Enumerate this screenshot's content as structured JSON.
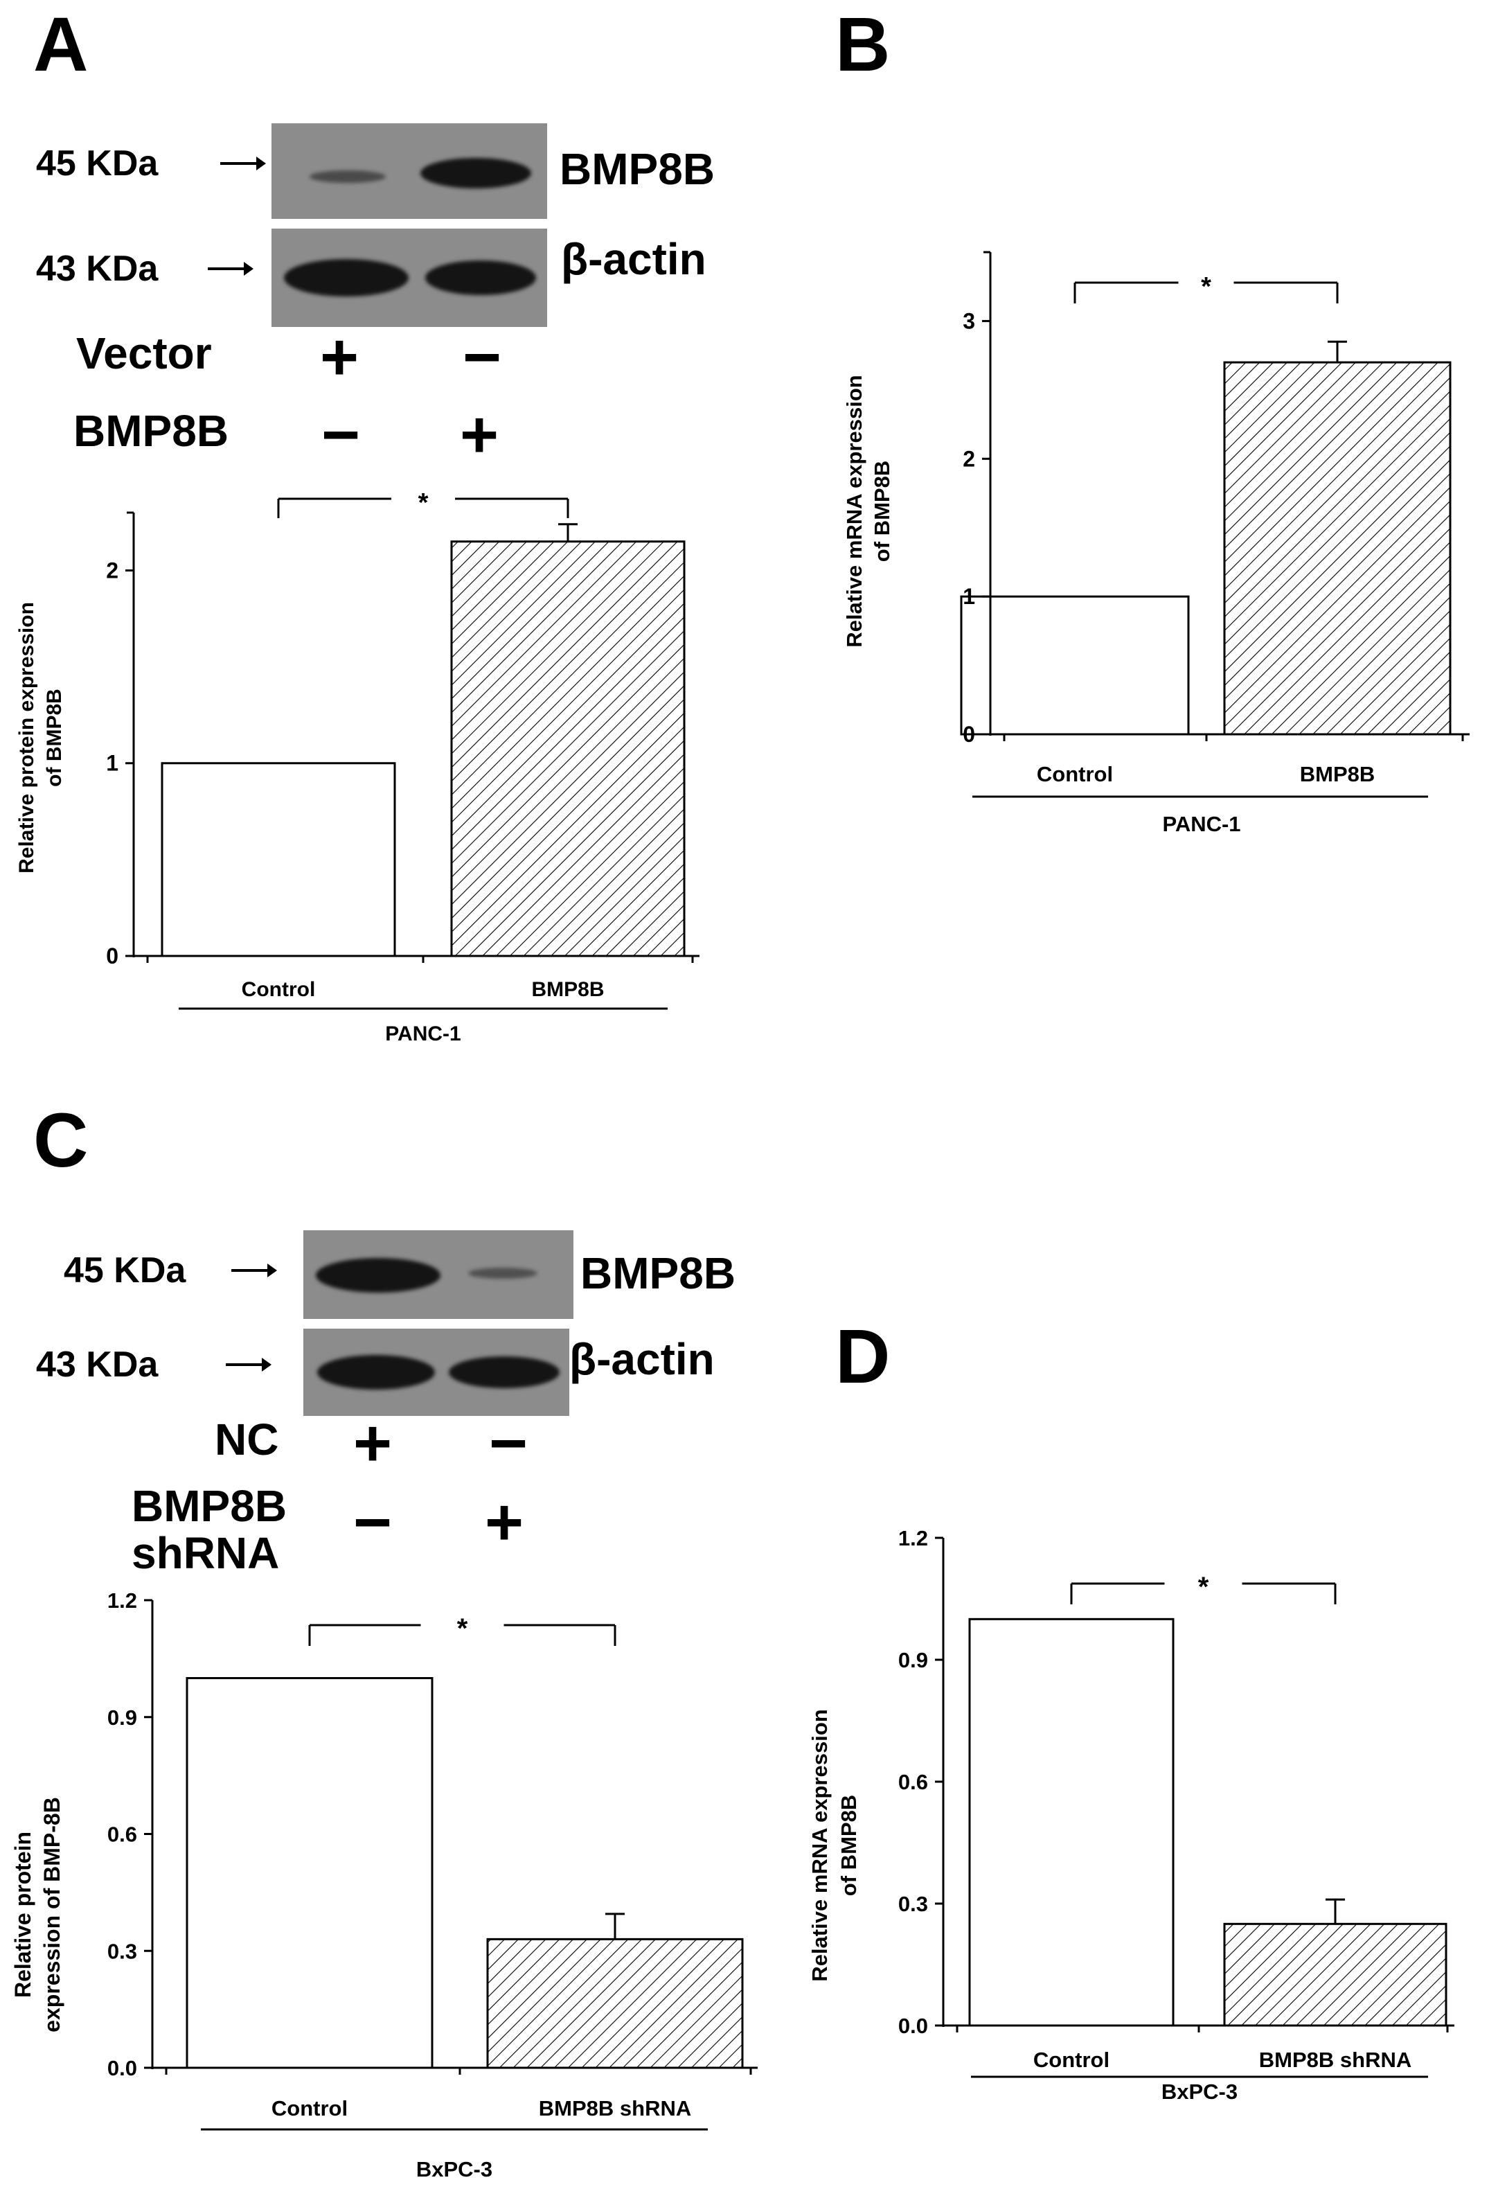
{
  "panels": {
    "A": {
      "letter": "A",
      "blot": {
        "rows": [
          {
            "kda": "45 KDa",
            "label": "BMP8B"
          },
          {
            "kda": "43 KDa",
            "label": "β-actin"
          }
        ],
        "conditions": [
          {
            "label": "Vector",
            "signs": [
              "+",
              "−"
            ]
          },
          {
            "label": "BMP8B",
            "signs": [
              "−",
              "+"
            ]
          }
        ]
      }
    },
    "B": {
      "letter": "B"
    },
    "C": {
      "letter": "C",
      "blot": {
        "rows": [
          {
            "kda": "45 KDa",
            "label": "BMP8B"
          },
          {
            "kda": "43 KDa",
            "label": "β-actin"
          }
        ],
        "conditions": [
          {
            "label": "NC",
            "signs": [
              "+",
              "−"
            ]
          },
          {
            "label_line1": "BMP8B",
            "label_line2": "shRNA",
            "signs": [
              "−",
              "+"
            ]
          }
        ]
      }
    },
    "D": {
      "letter": "D"
    }
  },
  "chart_data": [
    {
      "id": "A",
      "type": "bar",
      "categories": [
        "Control",
        "BMP8B"
      ],
      "values": [
        1.0,
        2.15
      ],
      "errors": [
        0,
        0.09
      ],
      "patterns": [
        "none",
        "hatch"
      ],
      "ylabel_line1": "Relative protein expression",
      "ylabel_line2": "of BMP8B",
      "group_label": "PANC-1",
      "yticks": [
        "0",
        "1",
        "2"
      ],
      "ylim": [
        0,
        2.3
      ],
      "significance": "*"
    },
    {
      "id": "B",
      "type": "bar",
      "categories": [
        "Control",
        "BMP8B"
      ],
      "values": [
        1.0,
        2.7
      ],
      "errors": [
        0,
        0.15
      ],
      "patterns": [
        "none",
        "hatch"
      ],
      "ylabel_line1": "Relative mRNA expression",
      "ylabel_line2": "of BMP8B",
      "group_label": "PANC-1",
      "yticks": [
        "0",
        "1",
        "2",
        "3"
      ],
      "ylim": [
        0,
        3.5
      ],
      "significance": "*"
    },
    {
      "id": "C",
      "type": "bar",
      "categories": [
        "Control",
        "BMP8B shRNA"
      ],
      "values": [
        1.0,
        0.33
      ],
      "errors": [
        0,
        0.065
      ],
      "patterns": [
        "none",
        "hatch"
      ],
      "ylabel_line1": "Relative protein",
      "ylabel_line2": "expression of BMP-8B",
      "group_label": "BxPC-3",
      "yticks": [
        "0.0",
        "0.3",
        "0.6",
        "0.9",
        "1.2"
      ],
      "ylim": [
        0,
        1.2
      ],
      "significance": "*"
    },
    {
      "id": "D",
      "type": "bar",
      "categories": [
        "Control",
        "BMP8B shRNA"
      ],
      "values": [
        1.0,
        0.25
      ],
      "errors": [
        0,
        0.06
      ],
      "patterns": [
        "none",
        "hatch"
      ],
      "ylabel_line1": "Relative mRNA expression",
      "ylabel_line2": "of BMP8B",
      "group_label": "BxPC-3",
      "yticks": [
        "0.0",
        "0.3",
        "0.6",
        "0.9",
        "1.2"
      ],
      "ylim": [
        0,
        1.2
      ],
      "significance": "*"
    }
  ]
}
